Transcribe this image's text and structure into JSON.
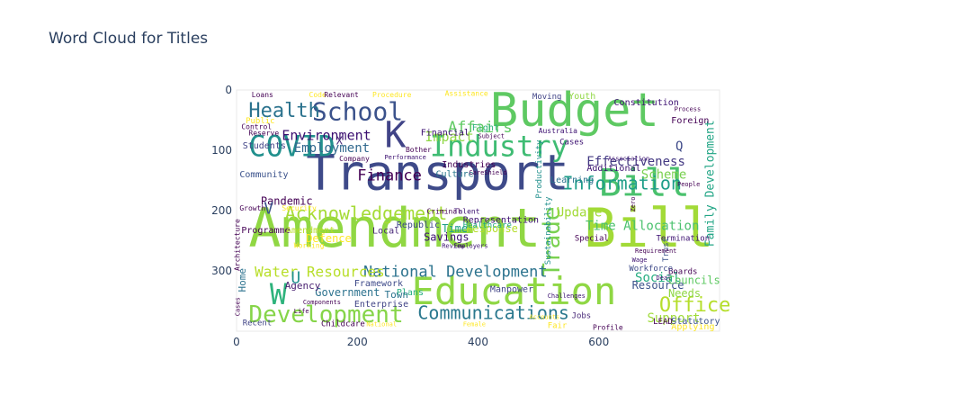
{
  "title": "Word Cloud for Titles",
  "chart_data": {
    "type": "image",
    "title": "Word Cloud for Titles",
    "xlim": [
      0,
      800
    ],
    "ylim": [
      400,
      0
    ],
    "x_ticks": [
      "0",
      "200",
      "400",
      "600"
    ],
    "y_ticks": [
      "0",
      "100",
      "200",
      "300"
    ],
    "colormap": "viridis",
    "words": [
      {
        "text": "Amendment",
        "x": 20,
        "y": 260,
        "size": 60,
        "color": "#90d743"
      },
      {
        "text": "Bill",
        "x": 575,
        "y": 260,
        "size": 60,
        "color": "#a2da37"
      },
      {
        "text": "Transport",
        "x": 115,
        "y": 165,
        "size": 54,
        "color": "#3e4a89"
      },
      {
        "text": "Budget",
        "x": 420,
        "y": 60,
        "size": 52,
        "color": "#5ec962"
      },
      {
        "text": "Education",
        "x": 290,
        "y": 355,
        "size": 42,
        "color": "#8fd744"
      },
      {
        "text": "Bill",
        "x": 600,
        "y": 175,
        "size": 42,
        "color": "#4ac16d"
      },
      {
        "text": "K",
        "x": 245,
        "y": 95,
        "size": 40,
        "color": "#414487"
      },
      {
        "text": "Industry",
        "x": 320,
        "y": 110,
        "size": 32,
        "color": "#3fbc73"
      },
      {
        "text": "COVID",
        "x": 20,
        "y": 110,
        "size": 32,
        "color": "#21908d"
      },
      {
        "text": "W",
        "x": 55,
        "y": 355,
        "size": 32,
        "color": "#2eb37c"
      },
      {
        "text": "School",
        "x": 125,
        "y": 50,
        "size": 28,
        "color": "#3b528b"
      },
      {
        "text": "Development",
        "x": 20,
        "y": 385,
        "size": 26,
        "color": "#86d549"
      },
      {
        "text": "Health",
        "x": 20,
        "y": 45,
        "size": 22,
        "color": "#2c738e"
      },
      {
        "text": "Trade",
        "x": 535,
        "y": 310,
        "size": 26,
        "color": "#7ad151",
        "vertical": true
      },
      {
        "text": "Acknowledgement",
        "x": 80,
        "y": 215,
        "size": 20,
        "color": "#a5db36"
      },
      {
        "text": "Information",
        "x": 540,
        "y": 165,
        "size": 20,
        "color": "#1f9e89"
      },
      {
        "text": "Communications",
        "x": 300,
        "y": 380,
        "size": 20,
        "color": "#2a788e"
      },
      {
        "text": "Office",
        "x": 700,
        "y": 367,
        "size": 22,
        "color": "#b5de2b"
      },
      {
        "text": "National Development",
        "x": 210,
        "y": 310,
        "size": 17,
        "color": "#2c738e"
      },
      {
        "text": "Affairs",
        "x": 350,
        "y": 70,
        "size": 17,
        "color": "#5ec962"
      },
      {
        "text": "Finance",
        "x": 200,
        "y": 150,
        "size": 17,
        "color": "#440154"
      },
      {
        "text": "Water Resources",
        "x": 30,
        "y": 310,
        "size": 16,
        "color": "#b8de29"
      },
      {
        "text": "Environment",
        "x": 75,
        "y": 83,
        "size": 15,
        "color": "#3b0f70"
      },
      {
        "text": "Impact",
        "x": 312,
        "y": 85,
        "size": 15,
        "color": "#8fd744"
      },
      {
        "text": "Employment",
        "x": 95,
        "y": 103,
        "size": 14,
        "color": "#31688e"
      },
      {
        "text": "Effectiveness",
        "x": 580,
        "y": 125,
        "size": 14,
        "color": "#443a83"
      },
      {
        "text": "Time Allocation",
        "x": 578,
        "y": 232,
        "size": 14,
        "color": "#4ac16d"
      },
      {
        "text": "Scheme",
        "x": 670,
        "y": 147,
        "size": 14,
        "color": "#7ad151"
      },
      {
        "text": "Update",
        "x": 530,
        "y": 210,
        "size": 14,
        "color": "#a2da37"
      },
      {
        "text": "Social",
        "x": 660,
        "y": 318,
        "size": 14,
        "color": "#26ad81"
      },
      {
        "text": "Support",
        "x": 680,
        "y": 385,
        "size": 14,
        "color": "#9fda3a"
      },
      {
        "text": "Family Development",
        "x": 790,
        "y": 260,
        "size": 13,
        "color": "#21a585",
        "vertical": true
      },
      {
        "text": "Pandemic",
        "x": 40,
        "y": 190,
        "size": 12,
        "color": "#440154"
      },
      {
        "text": "Savings",
        "x": 310,
        "y": 250,
        "size": 12,
        "color": "#3b0f70"
      },
      {
        "text": "Defence",
        "x": 115,
        "y": 252,
        "size": 12,
        "color": "#fde725"
      },
      {
        "text": "Government",
        "x": 130,
        "y": 342,
        "size": 12,
        "color": "#2c728e"
      },
      {
        "text": "Resource",
        "x": 655,
        "y": 330,
        "size": 12,
        "color": "#3b528b"
      },
      {
        "text": "Needs",
        "x": 715,
        "y": 343,
        "size": 12,
        "color": "#8fd744"
      },
      {
        "text": "Councils",
        "x": 715,
        "y": 322,
        "size": 12,
        "color": "#5ec962"
      },
      {
        "text": "Time",
        "x": 340,
        "y": 236,
        "size": 12,
        "color": "#1f9e89"
      },
      {
        "text": "Response",
        "x": 380,
        "y": 236,
        "size": 12,
        "color": "#b5de2b"
      },
      {
        "text": "Q",
        "x": 727,
        "y": 100,
        "size": 14,
        "color": "#3e4a89"
      },
      {
        "text": "X",
        "x": 165,
        "y": 90,
        "size": 12,
        "color": "#482878"
      },
      {
        "text": "V",
        "x": 45,
        "y": 205,
        "size": 18,
        "color": "#3b528b"
      },
      {
        "text": "U",
        "x": 90,
        "y": 320,
        "size": 18,
        "color": "#21908d"
      },
      {
        "text": "Agency",
        "x": 80,
        "y": 330,
        "size": 11,
        "color": "#481f70"
      },
      {
        "text": "Students",
        "x": 10,
        "y": 97,
        "size": 10,
        "color": "#414487"
      },
      {
        "text": "Community",
        "x": 5,
        "y": 145,
        "size": 10,
        "color": "#3b528b"
      },
      {
        "text": "Programme",
        "x": 8,
        "y": 237,
        "size": 10,
        "color": "#440154"
      },
      {
        "text": "Amendment",
        "x": 82,
        "y": 237,
        "size": 10,
        "color": "#b8de29"
      },
      {
        "text": "Local",
        "x": 225,
        "y": 238,
        "size": 10,
        "color": "#482878"
      },
      {
        "text": "Republic",
        "x": 265,
        "y": 228,
        "size": 10,
        "color": "#3e4a89"
      },
      {
        "text": "Representation",
        "x": 375,
        "y": 220,
        "size": 10,
        "color": "#3b0f70"
      },
      {
        "text": "Healthcare",
        "x": 375,
        "y": 228,
        "size": 9,
        "color": "#22a884"
      },
      {
        "text": "Industries",
        "x": 340,
        "y": 128,
        "size": 10,
        "color": "#440154"
      },
      {
        "text": "Culture",
        "x": 330,
        "y": 144,
        "size": 10,
        "color": "#2a788e"
      },
      {
        "text": "Financial",
        "x": 305,
        "y": 75,
        "size": 10,
        "color": "#3b0f70"
      },
      {
        "text": "Fight",
        "x": 390,
        "y": 67,
        "size": 10,
        "color": "#2eb37c"
      },
      {
        "text": "Youth",
        "x": 550,
        "y": 15,
        "size": 10,
        "color": "#8fd744"
      },
      {
        "text": "Constitution",
        "x": 625,
        "y": 25,
        "size": 10,
        "color": "#3b0f70"
      },
      {
        "text": "Foreign",
        "x": 720,
        "y": 55,
        "size": 10,
        "color": "#440154"
      },
      {
        "text": "Additional",
        "x": 580,
        "y": 134,
        "size": 10,
        "color": "#3b0f70"
      },
      {
        "text": "Learning",
        "x": 520,
        "y": 154,
        "size": 10,
        "color": "#2c728e"
      },
      {
        "text": "Manpower",
        "x": 420,
        "y": 335,
        "size": 10,
        "color": "#414487"
      },
      {
        "text": "Plans",
        "x": 265,
        "y": 340,
        "size": 10,
        "color": "#26ad81"
      },
      {
        "text": "Town",
        "x": 245,
        "y": 345,
        "size": 11,
        "color": "#2c738e"
      },
      {
        "text": "Framework",
        "x": 195,
        "y": 325,
        "size": 10,
        "color": "#3e4a89"
      },
      {
        "text": "Enterprise",
        "x": 195,
        "y": 360,
        "size": 10,
        "color": "#414487"
      },
      {
        "text": "Childcare",
        "x": 140,
        "y": 392,
        "size": 9,
        "color": "#440154"
      },
      {
        "text": "Recent",
        "x": 10,
        "y": 390,
        "size": 9,
        "color": "#414487"
      },
      {
        "text": "Jobs",
        "x": 555,
        "y": 378,
        "size": 9,
        "color": "#482878"
      },
      {
        "text": "Fair",
        "x": 515,
        "y": 395,
        "size": 9,
        "color": "#fde725"
      },
      {
        "text": "Profile",
        "x": 590,
        "y": 398,
        "size": 8,
        "color": "#440154"
      },
      {
        "text": "Applying",
        "x": 720,
        "y": 397,
        "size": 10,
        "color": "#fde725"
      },
      {
        "text": "LEAD",
        "x": 690,
        "y": 388,
        "size": 9,
        "color": "#440154"
      },
      {
        "text": "Statutory",
        "x": 720,
        "y": 388,
        "size": 10,
        "color": "#3b528b"
      },
      {
        "text": "Boards",
        "x": 715,
        "y": 305,
        "size": 9,
        "color": "#440154"
      },
      {
        "text": "Workforce",
        "x": 650,
        "y": 300,
        "size": 9,
        "color": "#3e4a89"
      },
      {
        "text": "Special",
        "x": 560,
        "y": 250,
        "size": 9,
        "color": "#440154"
      },
      {
        "text": "Termination",
        "x": 695,
        "y": 250,
        "size": 9,
        "color": "#3b0f70"
      },
      {
        "text": "Trust",
        "x": 715,
        "y": 285,
        "size": 9,
        "color": "#3b528b",
        "vertical": true
      },
      {
        "text": "Productivity",
        "x": 505,
        "y": 180,
        "size": 9,
        "color": "#21908d",
        "vertical": true
      },
      {
        "text": "Sustainability",
        "x": 520,
        "y": 290,
        "size": 9,
        "color": "#21908d",
        "vertical": true
      },
      {
        "text": "Cases",
        "x": 535,
        "y": 90,
        "size": 9,
        "color": "#3b0f70"
      },
      {
        "text": "Moving",
        "x": 490,
        "y": 15,
        "size": 9,
        "color": "#414487"
      },
      {
        "text": "Assistance",
        "x": 345,
        "y": 10,
        "size": 8,
        "color": "#fde725"
      },
      {
        "text": "Procedure",
        "x": 225,
        "y": 12,
        "size": 8,
        "color": "#fde725"
      },
      {
        "text": "Code",
        "x": 120,
        "y": 12,
        "size": 8,
        "color": "#fde725"
      },
      {
        "text": "Relevant",
        "x": 145,
        "y": 12,
        "size": 8,
        "color": "#440154"
      },
      {
        "text": "Public",
        "x": 15,
        "y": 55,
        "size": 9,
        "color": "#fde725"
      },
      {
        "text": "Loans",
        "x": 25,
        "y": 12,
        "size": 8,
        "color": "#440154"
      },
      {
        "text": "Reserve",
        "x": 20,
        "y": 75,
        "size": 8,
        "color": "#440154"
      },
      {
        "text": "Control",
        "x": 8,
        "y": 65,
        "size": 8,
        "color": "#440154"
      },
      {
        "text": "Company",
        "x": 170,
        "y": 118,
        "size": 8,
        "color": "#440154"
      },
      {
        "text": "Growth",
        "x": 5,
        "y": 200,
        "size": 8,
        "color": "#440154"
      },
      {
        "text": "Security",
        "x": 75,
        "y": 200,
        "size": 8,
        "color": "#fde725"
      },
      {
        "text": "Working",
        "x": 95,
        "y": 262,
        "size": 8,
        "color": "#fde725"
      },
      {
        "text": "Review",
        "x": 340,
        "y": 262,
        "size": 7,
        "color": "#3b0f70"
      },
      {
        "text": "Employers",
        "x": 360,
        "y": 262,
        "size": 7,
        "color": "#3b0f70"
      },
      {
        "text": "Criminal",
        "x": 315,
        "y": 205,
        "size": 8,
        "color": "#440154"
      },
      {
        "text": "Talent",
        "x": 360,
        "y": 205,
        "size": 8,
        "color": "#3b0f70"
      },
      {
        "text": "CareShield",
        "x": 385,
        "y": 140,
        "size": 7,
        "color": "#440154"
      },
      {
        "text": "Australia",
        "x": 500,
        "y": 72,
        "size": 8,
        "color": "#3b0f70"
      },
      {
        "text": "Subject",
        "x": 400,
        "y": 80,
        "size": 7,
        "color": "#440154"
      },
      {
        "text": "Bother",
        "x": 280,
        "y": 103,
        "size": 8,
        "color": "#440154"
      },
      {
        "text": "Performance",
        "x": 245,
        "y": 115,
        "size": 7,
        "color": "#3b0f70"
      },
      {
        "text": "Components",
        "x": 110,
        "y": 355,
        "size": 7,
        "color": "#440154"
      },
      {
        "text": "Life",
        "x": 95,
        "y": 370,
        "size": 7,
        "color": "#440154"
      },
      {
        "text": "National",
        "x": 215,
        "y": 392,
        "size": 7,
        "color": "#fde725"
      },
      {
        "text": "Female",
        "x": 375,
        "y": 392,
        "size": 7,
        "color": "#fde725"
      },
      {
        "text": "Accounts",
        "x": 485,
        "y": 380,
        "size": 7,
        "color": "#fde725"
      },
      {
        "text": "Challenges",
        "x": 515,
        "y": 345,
        "size": 7,
        "color": "#3b0f70"
      },
      {
        "text": "Requirement",
        "x": 660,
        "y": 270,
        "size": 7,
        "color": "#440154"
      },
      {
        "text": "Wage",
        "x": 655,
        "y": 285,
        "size": 7,
        "color": "#3b0f70"
      },
      {
        "text": "Deal",
        "x": 695,
        "y": 315,
        "size": 7,
        "color": "#3b0f70"
      },
      {
        "text": "Process",
        "x": 725,
        "y": 35,
        "size": 7,
        "color": "#440154"
      },
      {
        "text": "Association",
        "x": 615,
        "y": 117,
        "size": 7,
        "color": "#3b0f70"
      },
      {
        "text": "People",
        "x": 730,
        "y": 160,
        "size": 7,
        "color": "#440154"
      },
      {
        "text": "Zero",
        "x": 660,
        "y": 202,
        "size": 7,
        "color": "#440154",
        "vertical": true
      },
      {
        "text": "Home",
        "x": 15,
        "y": 335,
        "size": 11,
        "color": "#2c728e",
        "vertical": true
      },
      {
        "text": "Architecture",
        "x": 5,
        "y": 300,
        "size": 8,
        "color": "#440154",
        "vertical": true
      },
      {
        "text": "Cases",
        "x": 5,
        "y": 375,
        "size": 7,
        "color": "#440154",
        "vertical": true
      }
    ]
  }
}
